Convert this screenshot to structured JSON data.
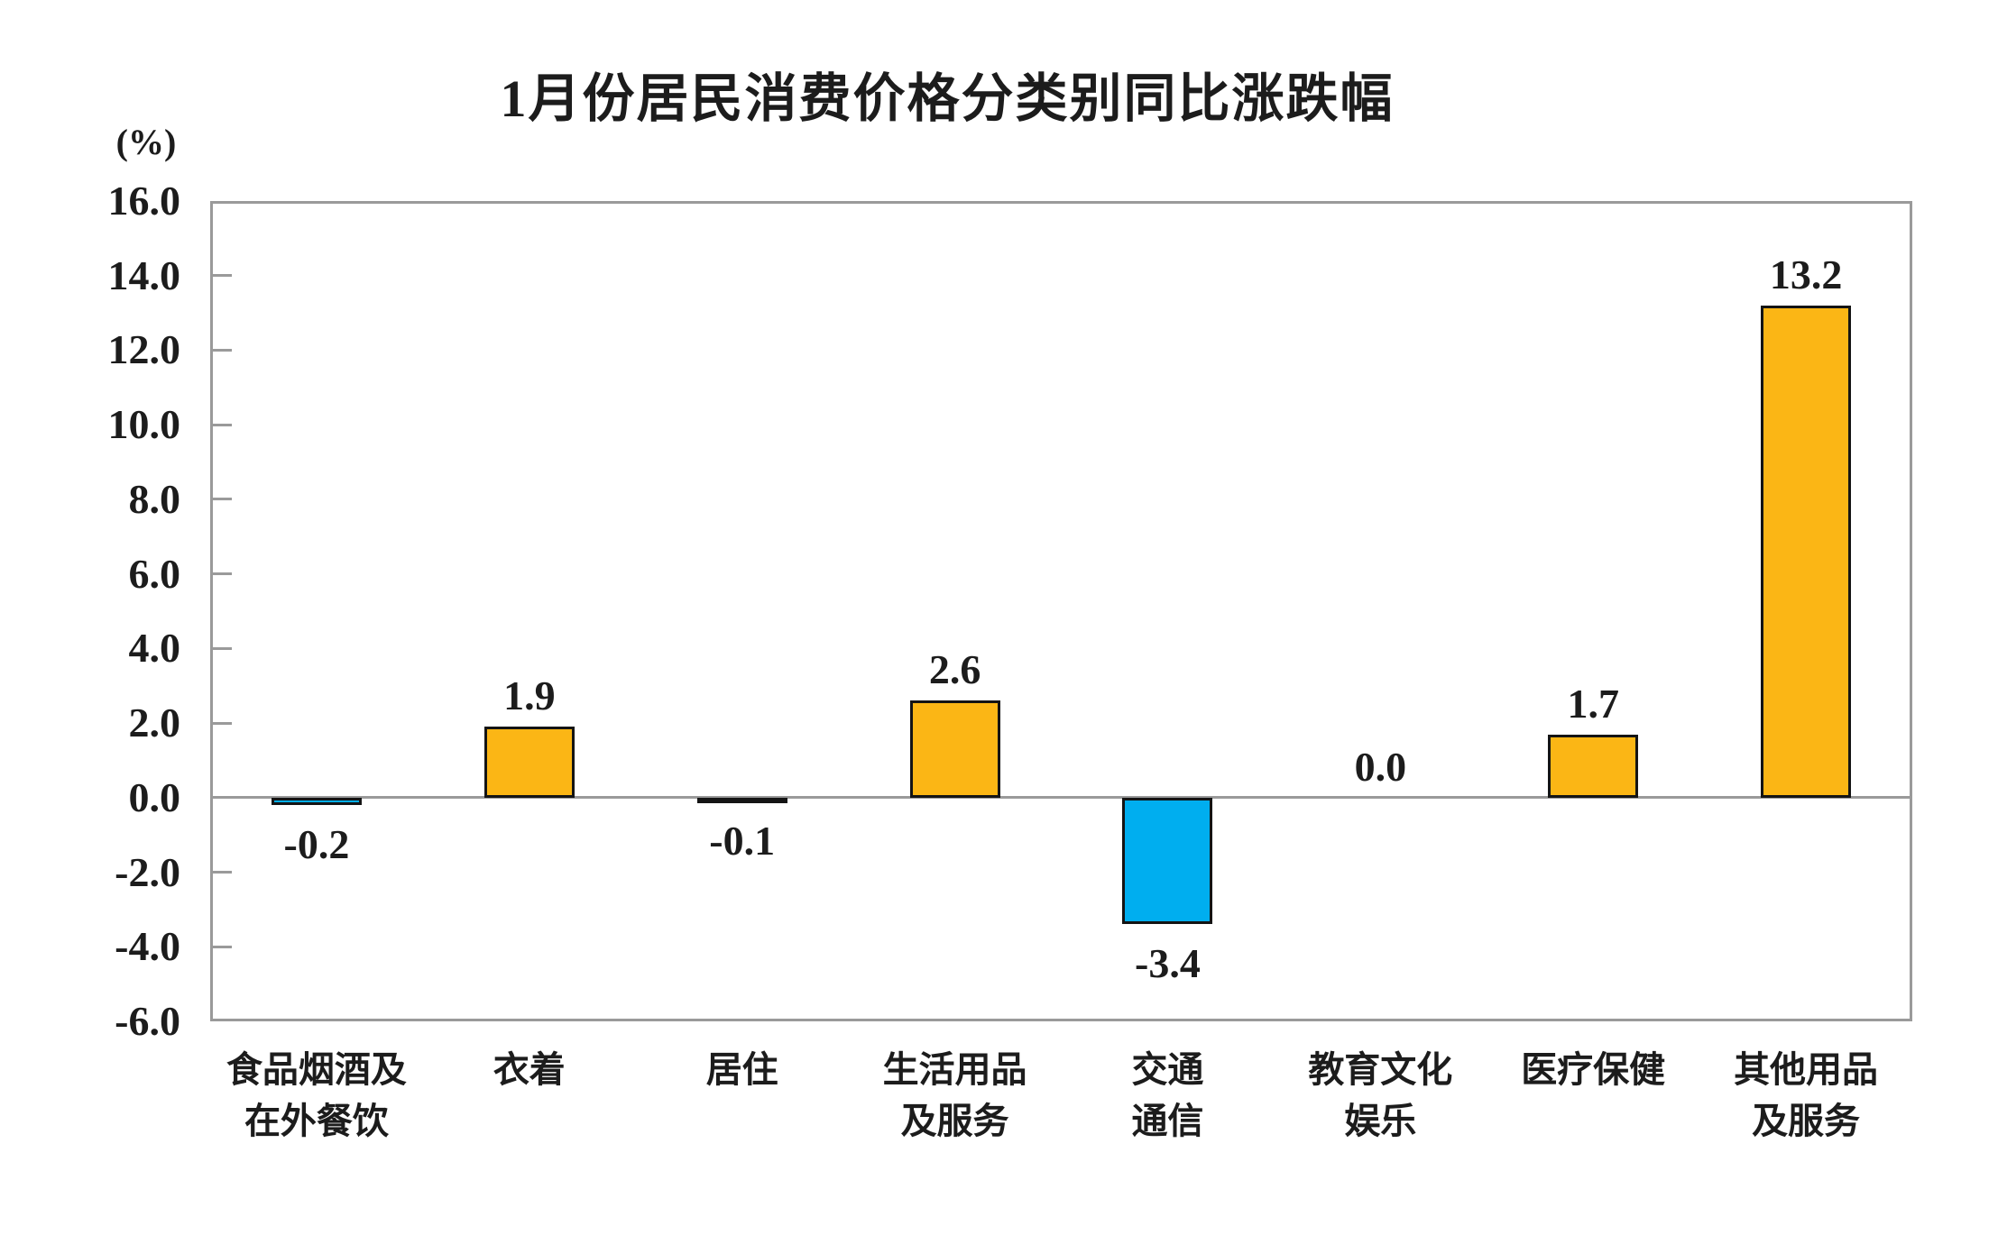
{
  "chart_data": {
    "type": "bar",
    "title": "1月份居民消费价格分类别同比涨跌幅",
    "ylabel": "(%)",
    "xlabel": "",
    "categories": [
      "食品烟酒及\n在外餐饮",
      "衣着",
      "居住",
      "生活用品\n及服务",
      "交通\n通信",
      "教育文化\n娱乐",
      "医疗保健",
      "其他用品\n及服务"
    ],
    "values": [
      -0.2,
      1.9,
      -0.1,
      2.6,
      -3.4,
      0.0,
      1.7,
      13.2
    ],
    "value_labels": [
      "-0.2",
      "1.9",
      "-0.1",
      "2.6",
      "-3.4",
      "0.0",
      "1.7",
      "13.2"
    ],
    "ylim": [
      -6.0,
      16.0
    ],
    "ytick_step": 2.0,
    "ytick_labels": [
      "16.0",
      "14.0",
      "12.0",
      "10.0",
      "8.0",
      "6.0",
      "4.0",
      "2.0",
      "0.0",
      "-2.0",
      "-4.0",
      "-6.0"
    ],
    "yticks": [
      16.0,
      14.0,
      12.0,
      10.0,
      8.0,
      6.0,
      4.0,
      2.0,
      0.0,
      -2.0,
      -4.0,
      -6.0
    ],
    "grid": false,
    "legend": "none",
    "colors": {
      "positive_bar": "#FBB615",
      "negative_bar": "#00AEEF",
      "bar_border": "#141414",
      "axis": "#9a9a9a",
      "text": "#1c1c1c",
      "background": "#ffffff"
    }
  }
}
